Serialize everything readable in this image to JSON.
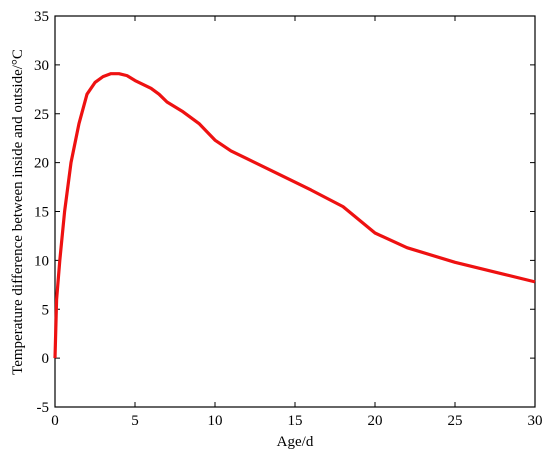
{
  "chart_data": {
    "type": "line",
    "x_label": "Age/d",
    "y_label": "Temperature difference between inside and outside/°C",
    "xlim": [
      0,
      30
    ],
    "xticks": [
      0,
      5,
      10,
      15,
      20,
      25,
      30
    ],
    "ylim": [
      -5,
      35
    ],
    "yticks": [
      -5,
      0,
      5,
      10,
      15,
      20,
      25,
      30,
      35
    ],
    "grid": false,
    "series": [
      {
        "color": "#ee1111",
        "x": [
          0,
          0.1,
          0.3,
          0.6,
          1,
          1.5,
          2,
          2.5,
          3,
          3.5,
          4,
          4.5,
          5,
          6,
          6.5,
          7,
          8,
          9,
          10,
          11,
          12,
          14,
          16,
          18,
          20,
          22,
          25,
          28,
          30
        ],
        "values": [
          0,
          6,
          10,
          15,
          20,
          24,
          27,
          28.2,
          28.8,
          29.1,
          29.1,
          28.9,
          28.4,
          27.6,
          27,
          26.2,
          25.2,
          24,
          22.3,
          21.2,
          20.4,
          18.8,
          17.2,
          15.5,
          12.8,
          11.3,
          9.8,
          8.6,
          7.8
        ]
      }
    ]
  }
}
